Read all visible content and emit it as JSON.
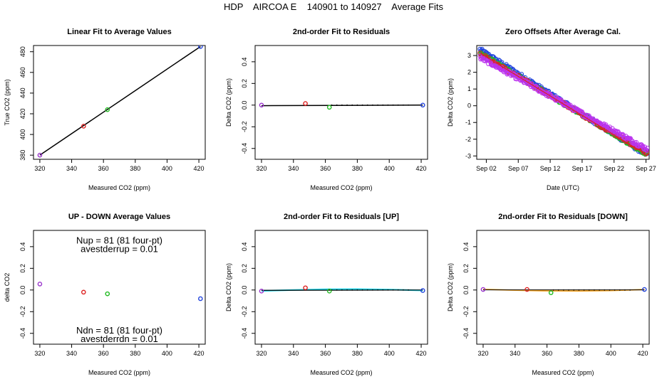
{
  "figure": {
    "title": "HDP    AIRCOA E    140901 to 140927    Average Fits"
  },
  "chart_data": [
    {
      "id": "p1",
      "type": "scatter",
      "title": "Linear Fit to Average Values",
      "xlabel": "Measured CO2 (ppm)",
      "ylabel": "True CO2 (ppm)",
      "xlim": [
        316,
        424
      ],
      "ylim": [
        376,
        486
      ],
      "x_ticks": [
        320,
        340,
        360,
        380,
        400,
        420
      ],
      "y_ticks": [
        380,
        400,
        420,
        440,
        460,
        480
      ],
      "y_tick_rotate": true,
      "points": [
        {
          "x": 320,
          "y": 380,
          "color": "#9933cc"
        },
        {
          "x": 347.5,
          "y": 408,
          "color": "#dd2222"
        },
        {
          "x": 362.5,
          "y": 424,
          "color": "#22bb22"
        },
        {
          "x": 421,
          "y": 485,
          "color": "#2244dd"
        }
      ],
      "lines": [
        {
          "x": [
            320,
            421
          ],
          "y": [
            380,
            485
          ],
          "color": "#000000",
          "width": 1.5
        }
      ]
    },
    {
      "id": "p2",
      "type": "scatter",
      "title": "2nd-order Fit to Residuals",
      "xlabel": "Measured CO2 (ppm)",
      "ylabel": "Delta CO2 (ppm)",
      "xlim": [
        316,
        424
      ],
      "ylim": [
        -0.5,
        0.55
      ],
      "x_ticks": [
        320,
        340,
        360,
        380,
        400,
        420
      ],
      "y_ticks": [
        -0.4,
        -0.2,
        0.0,
        0.2,
        0.4
      ],
      "y_tick_labels": [
        "-0.4",
        "-0.2",
        "0.0",
        "0.2",
        "0.4"
      ],
      "y_tick_rotate": true,
      "points": [
        {
          "x": 320,
          "y": 0.0,
          "color": "#9933cc"
        },
        {
          "x": 347.5,
          "y": 0.015,
          "color": "#dd2222"
        },
        {
          "x": 362.5,
          "y": -0.02,
          "color": "#22bb22"
        },
        {
          "x": 421,
          "y": 0.0,
          "color": "#2244dd"
        }
      ],
      "lines": [
        {
          "x": [
            320,
            421
          ],
          "y": [
            -0.005,
            0.0
          ],
          "color": "#000000",
          "width": 1.5
        }
      ]
    },
    {
      "id": "p3",
      "type": "scatter",
      "title": "Zero Offsets After Average Cal.",
      "xlabel": "Date (UTC)",
      "ylabel": "Delta CO2 (ppm)",
      "xlim": [
        0.5,
        27.5
      ],
      "ylim": [
        -3.2,
        3.6
      ],
      "x_ticks": [
        2,
        7,
        12,
        17,
        22,
        27
      ],
      "x_tick_labels": [
        "Sep 02",
        "Sep 07",
        "Sep 12",
        "Sep 17",
        "Sep 22",
        "Sep 27"
      ],
      "y_ticks": [
        -3,
        -2,
        -1,
        0,
        1,
        2,
        3
      ],
      "y_tick_rotate": false,
      "dense_series": [
        {
          "color": "#2244dd",
          "x_start": 1.0,
          "x_end": 27.2,
          "y_start": 3.3,
          "y_end": -3.0,
          "offset": 0.05,
          "jitter": 0.12,
          "n": 230
        },
        {
          "color": "#22bb22",
          "x_start": 1.0,
          "x_end": 27.2,
          "y_start": 3.15,
          "y_end": -2.9,
          "offset": 0.0,
          "jitter": 0.1,
          "n": 170
        },
        {
          "color": "#dd2222",
          "x_start": 1.0,
          "x_end": 27.2,
          "y_start": 3.1,
          "y_end": -2.85,
          "offset": 0.0,
          "jitter": 0.1,
          "n": 140
        },
        {
          "color": "#bb33ee",
          "x_start": 1.0,
          "x_end": 27.2,
          "y_start": 2.9,
          "y_end": -2.6,
          "offset": 0.0,
          "jitter": 0.13,
          "n": 260
        }
      ],
      "lines": [
        {
          "x": [
            1.0,
            27.2
          ],
          "y": [
            3.15,
            -2.95
          ],
          "color": "#dd2222",
          "width": 1.2
        }
      ]
    },
    {
      "id": "p4",
      "type": "scatter",
      "title": "UP - DOWN Average Values",
      "xlabel": "Measured CO2 (ppm)",
      "ylabel": "delta CO2",
      "xlim": [
        316,
        424
      ],
      "ylim": [
        -0.5,
        0.55
      ],
      "x_ticks": [
        320,
        340,
        360,
        380,
        400,
        420
      ],
      "y_ticks": [
        -0.4,
        -0.2,
        0.0,
        0.2,
        0.4
      ],
      "y_tick_labels": [
        "-0.4",
        "-0.2",
        "0.0",
        "0.2",
        "0.4"
      ],
      "y_tick_rotate": true,
      "points": [
        {
          "x": 320,
          "y": 0.055,
          "color": "#9933cc"
        },
        {
          "x": 347.5,
          "y": -0.02,
          "color": "#dd2222"
        },
        {
          "x": 362.5,
          "y": -0.035,
          "color": "#22bb22"
        },
        {
          "x": 421,
          "y": -0.08,
          "color": "#2244dd"
        }
      ],
      "lines": [],
      "annotations": [
        {
          "text": "Nup = 81 (81 four-pt)",
          "x": 370,
          "y": 0.455
        },
        {
          "text": "avestderrup =  0.01",
          "x": 370,
          "y": 0.375
        },
        {
          "text": "Ndn = 81 (81 four-pt)",
          "x": 370,
          "y": -0.375
        },
        {
          "text": "avestderrdn =  0.01",
          "x": 370,
          "y": -0.455
        }
      ]
    },
    {
      "id": "p5",
      "type": "scatter",
      "title": "2nd-order Fit to Residuals [UP]",
      "xlabel": "Measured CO2 (ppm)",
      "ylabel": "Delta CO2 (ppm)",
      "xlim": [
        316,
        424
      ],
      "ylim": [
        -0.5,
        0.55
      ],
      "x_ticks": [
        320,
        340,
        360,
        380,
        400,
        420
      ],
      "y_ticks": [
        -0.4,
        -0.2,
        0.0,
        0.2,
        0.4
      ],
      "y_tick_labels": [
        "-0.4",
        "-0.2",
        "0.0",
        "0.2",
        "0.4"
      ],
      "y_tick_rotate": true,
      "points": [
        {
          "x": 320,
          "y": -0.01,
          "color": "#9933cc"
        },
        {
          "x": 347.5,
          "y": 0.02,
          "color": "#dd2222"
        },
        {
          "x": 362.5,
          "y": -0.01,
          "color": "#22bb22"
        },
        {
          "x": 421,
          "y": -0.005,
          "color": "#2244dd"
        }
      ],
      "lines": [
        {
          "x": [
            320,
            340,
            360,
            380,
            400,
            421
          ],
          "y": [
            -0.008,
            0.0,
            0.006,
            0.008,
            0.004,
            -0.004
          ],
          "color": "#22d3e6",
          "width": 2.2
        },
        {
          "x": [
            320,
            421
          ],
          "y": [
            -0.003,
            0.0
          ],
          "color": "#000000",
          "width": 1.2
        }
      ]
    },
    {
      "id": "p6",
      "type": "scatter",
      "title": "2nd-order Fit to Residuals [DOWN]",
      "xlabel": "Measured CO2 (ppm)",
      "ylabel": "Delta CO2 (ppm)",
      "xlim": [
        316,
        424
      ],
      "ylim": [
        -0.5,
        0.55
      ],
      "x_ticks": [
        320,
        340,
        360,
        380,
        400,
        420
      ],
      "y_ticks": [
        -0.4,
        -0.2,
        0.0,
        0.2,
        0.4
      ],
      "y_tick_labels": [
        "-0.4",
        "-0.2",
        "0.0",
        "0.2",
        "0.4"
      ],
      "y_tick_rotate": true,
      "points": [
        {
          "x": 320,
          "y": 0.005,
          "color": "#9933cc"
        },
        {
          "x": 347.5,
          "y": 0.005,
          "color": "#dd2222"
        },
        {
          "x": 362.5,
          "y": -0.025,
          "color": "#22bb22"
        },
        {
          "x": 421,
          "y": 0.005,
          "color": "#2244dd"
        }
      ],
      "lines": [
        {
          "x": [
            320,
            340,
            360,
            380,
            400,
            421
          ],
          "y": [
            0.006,
            -0.002,
            -0.008,
            -0.009,
            -0.005,
            0.004
          ],
          "color": "#f0a020",
          "width": 1.8
        },
        {
          "x": [
            320,
            421
          ],
          "y": [
            0.001,
            0.001
          ],
          "color": "#000000",
          "width": 1.0
        }
      ]
    }
  ]
}
